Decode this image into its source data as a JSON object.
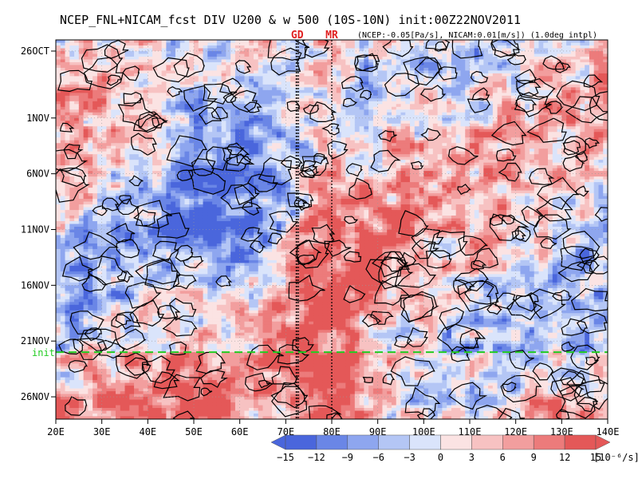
{
  "chart_data": {
    "type": "heatmap",
    "title": "NCEP_FNL+NICAM_fcst DIV U200 & w 500 (10S-10N) init:00Z22NOV2011",
    "subtitle": "(NCEP:-0.05[Pa/s], NICAM:0.01[m/s]) (1.0deg intpl)",
    "x_axis": {
      "range": [
        20,
        140
      ],
      "ticks": [
        20,
        30,
        40,
        50,
        60,
        70,
        80,
        90,
        100,
        110,
        120,
        130,
        140
      ],
      "tick_labels": [
        "20E",
        "30E",
        "40E",
        "50E",
        "60E",
        "70E",
        "80E",
        "90E",
        "100E",
        "110E",
        "120E",
        "130E",
        "140E"
      ]
    },
    "y_axis": {
      "range_days_from_start": [
        0,
        34
      ],
      "ticks": [
        "26OCT",
        "1NOV",
        "6NOV",
        "11NOV",
        "16NOV",
        "21NOV",
        "26NOV"
      ],
      "tick_labels": [
        "26OCT",
        "1NOV",
        "6NOV",
        "11NOV",
        "16NOV",
        "21NOV",
        "26NOV"
      ]
    },
    "markers": [
      {
        "label": "GD",
        "lon": 72.5
      },
      {
        "label": "MR",
        "lon": 80
      }
    ],
    "init_line": {
      "label": "init",
      "date": "22NOV2011"
    },
    "colorbar": {
      "levels": [
        -15,
        -12,
        -9,
        -6,
        -3,
        0,
        3,
        6,
        9,
        12,
        15
      ],
      "tick_labels": [
        "−15",
        "−12",
        "−9",
        "−6",
        "−3",
        "0",
        "3",
        "6",
        "9",
        "12",
        "15"
      ],
      "units": "[10⁻⁶/s]",
      "colors": [
        "#4a66dc",
        "#6a86e6",
        "#8ea6ef",
        "#b4c6f5",
        "#dae4fb",
        "#fbe3e3",
        "#f7c2c2",
        "#f29e9e",
        "#ec7b7b",
        "#e45858"
      ]
    },
    "grid": true
  }
}
